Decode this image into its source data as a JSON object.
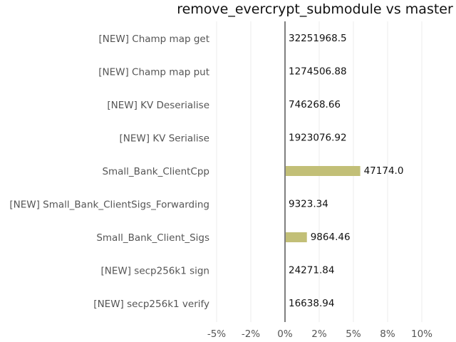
{
  "chart_data": {
    "type": "bar",
    "orientation": "horizontal",
    "title": "remove_evercrypt_submodule vs master",
    "xlabel": "",
    "ylabel": "",
    "categories": [
      "[NEW] Champ map get",
      "[NEW] Champ map put",
      "[NEW] KV Deserialise",
      "[NEW] KV Serialise",
      "Small_Bank_ClientCpp",
      "[NEW] Small_Bank_ClientSigs_Forwarding",
      "Small_Bank_Client_Sigs",
      "[NEW] secp256k1 sign",
      "[NEW] secp256k1 verify"
    ],
    "values": [
      0,
      0,
      0,
      0,
      5.5,
      0,
      1.6,
      0,
      0
    ],
    "data_labels": [
      "32251968.5",
      "1274506.88",
      "746268.66",
      "1923076.92",
      "47174.0",
      "9323.34",
      "9864.46",
      "24271.84",
      "16638.94"
    ],
    "xlim": [
      -5,
      12.5
    ],
    "xticks": [
      -5,
      -2.5,
      0,
      2.5,
      5,
      7.5,
      10
    ],
    "xtick_labels": [
      "-5%",
      "-2%",
      "0%",
      "2%",
      "5%",
      "8%",
      "10%"
    ],
    "grid": "vertical",
    "bar_color": "#c2bf77",
    "zero_line_color": "#7f7f7f",
    "grid_color": "#eeeeee"
  }
}
